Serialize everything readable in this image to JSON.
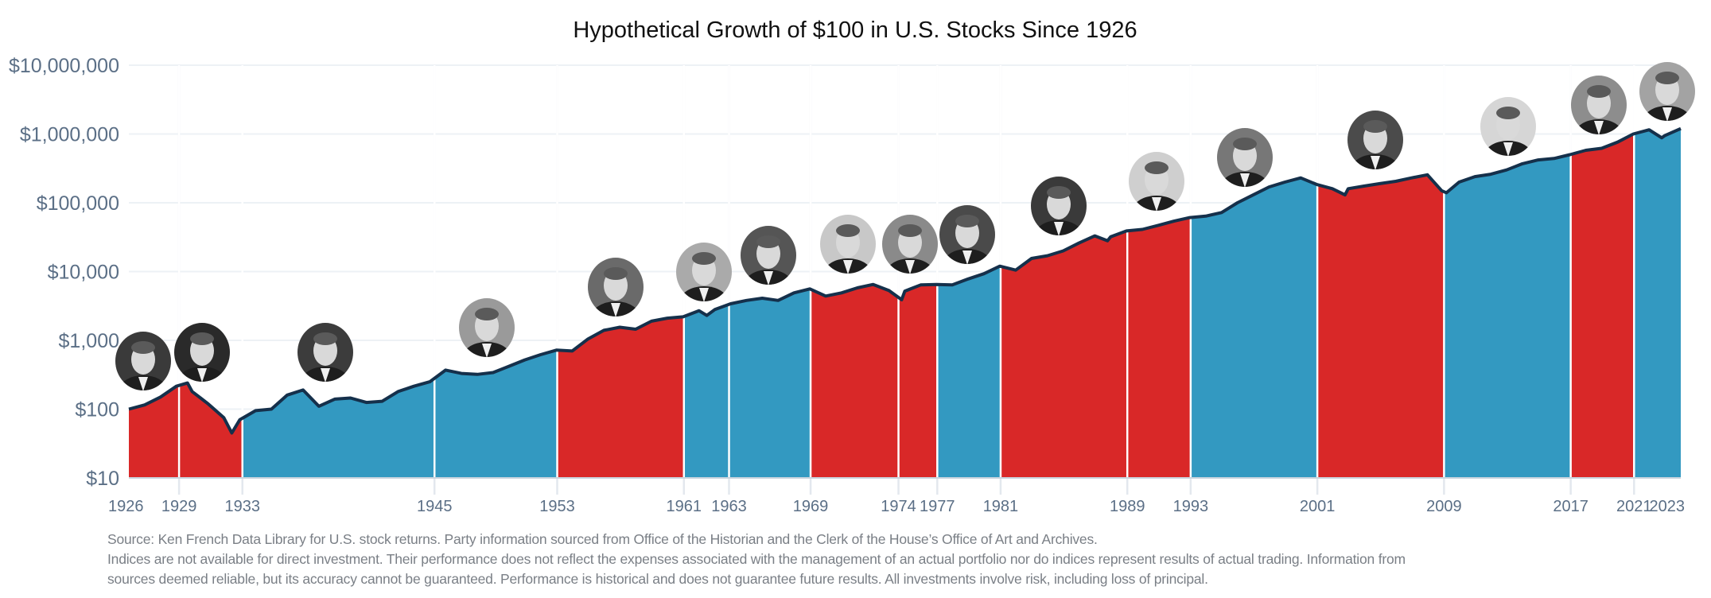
{
  "chart_data": {
    "type": "area",
    "title": "Hypothetical Growth of $100 in U.S. Stocks Since 1926",
    "xlabel": "",
    "ylabel": "",
    "yscale": "log",
    "ylim": [
      10,
      10000000
    ],
    "xlim": [
      1926,
      2024
    ],
    "grid": true,
    "y_ticks": [
      "$10",
      "$100",
      "$1,000",
      "$10,000",
      "$100,000",
      "$1,000,000",
      "$10,000,000"
    ],
    "y_tick_values": [
      10,
      100,
      1000,
      10000,
      100000,
      1000000,
      10000000
    ],
    "x_ticks": [
      "1926",
      "1929",
      "1933",
      "1945",
      "1953",
      "1961",
      "1963",
      "1969",
      "1974",
      "1977",
      "1981",
      "1989",
      "1993",
      "2001",
      "2009",
      "2017",
      "2021",
      "2023"
    ],
    "x_tick_values": [
      1926,
      1929.17,
      1933.17,
      1945.3,
      1953.05,
      1961.05,
      1963.9,
      1969.05,
      1974.6,
      1977.05,
      1981.05,
      1989.05,
      1993.05,
      2001.05,
      2009.05,
      2017.05,
      2021.05,
      2024
    ],
    "colors": {
      "republican": "#d92828",
      "democrat": "#3399c1",
      "line": "#15304b",
      "grid": "#edf1f5"
    },
    "terms": [
      {
        "start": 1926,
        "end": 1929.17,
        "party": "republican"
      },
      {
        "start": 1929.17,
        "end": 1933.17,
        "party": "republican"
      },
      {
        "start": 1933.17,
        "end": 1945.3,
        "party": "democrat"
      },
      {
        "start": 1945.3,
        "end": 1953.05,
        "party": "democrat"
      },
      {
        "start": 1953.05,
        "end": 1961.05,
        "party": "republican"
      },
      {
        "start": 1961.05,
        "end": 1963.9,
        "party": "democrat"
      },
      {
        "start": 1963.9,
        "end": 1969.05,
        "party": "democrat"
      },
      {
        "start": 1969.05,
        "end": 1974.6,
        "party": "republican"
      },
      {
        "start": 1974.6,
        "end": 1977.05,
        "party": "republican"
      },
      {
        "start": 1977.05,
        "end": 1981.05,
        "party": "democrat"
      },
      {
        "start": 1981.05,
        "end": 1989.05,
        "party": "republican"
      },
      {
        "start": 1989.05,
        "end": 1993.05,
        "party": "republican"
      },
      {
        "start": 1993.05,
        "end": 2001.05,
        "party": "democrat"
      },
      {
        "start": 2001.05,
        "end": 2009.05,
        "party": "republican"
      },
      {
        "start": 2009.05,
        "end": 2017.05,
        "party": "democrat"
      },
      {
        "start": 2017.05,
        "end": 2021.05,
        "party": "republican"
      },
      {
        "start": 2021.05,
        "end": 2024,
        "party": "democrat"
      }
    ],
    "portrait_icons": [
      "coolidge-portrait-icon",
      "hoover-portrait-icon",
      "roosevelt-portrait-icon",
      "truman-portrait-icon",
      "eisenhower-portrait-icon",
      "kennedy-portrait-icon",
      "johnson-portrait-icon",
      "nixon-portrait-icon",
      "ford-portrait-icon",
      "carter-portrait-icon",
      "reagan-portrait-icon",
      "bush-sr-portrait-icon",
      "clinton-portrait-icon",
      "bush-jr-portrait-icon",
      "obama-portrait-icon",
      "trump-portrait-icon",
      "biden-portrait-icon"
    ],
    "series": [
      {
        "x": [
          1926,
          1927,
          1928,
          1929,
          1929.7,
          1930,
          1931,
          1932,
          1932.5,
          1933,
          1934,
          1935,
          1936,
          1937,
          1938,
          1939,
          1940,
          1941,
          1942,
          1943,
          1944,
          1945,
          1946,
          1947,
          1948,
          1949,
          1950,
          1951,
          1952,
          1953,
          1954,
          1955,
          1956,
          1957,
          1958,
          1959,
          1960,
          1961,
          1962,
          1962.5,
          1963,
          1964,
          1965,
          1966,
          1967,
          1968,
          1969,
          1970,
          1971,
          1972,
          1973,
          1974,
          1974.8,
          1975,
          1976,
          1977,
          1978,
          1979,
          1980,
          1981,
          1982,
          1983,
          1984,
          1985,
          1986,
          1987,
          1987.8,
          1988,
          1989,
          1990,
          1991,
          1992,
          1993,
          1994,
          1995,
          1996,
          1997,
          1998,
          1999,
          2000,
          2001,
          2002,
          2002.8,
          2003,
          2004,
          2005,
          2006,
          2007,
          2008,
          2008.9,
          2009.2,
          2010,
          2011,
          2012,
          2013,
          2014,
          2015,
          2016,
          2017,
          2018,
          2019,
          2020,
          2021,
          2022,
          2022.8,
          2023,
          2024
        ],
        "y": [
          100,
          115,
          150,
          215,
          240,
          180,
          120,
          75,
          45,
          70,
          95,
          100,
          160,
          190,
          110,
          140,
          145,
          125,
          130,
          180,
          215,
          250,
          370,
          330,
          320,
          340,
          420,
          520,
          620,
          720,
          700,
          1050,
          1400,
          1550,
          1450,
          1900,
          2100,
          2200,
          2700,
          2300,
          2800,
          3400,
          3800,
          4100,
          3800,
          4900,
          5600,
          4400,
          4900,
          5800,
          6500,
          5300,
          3900,
          5200,
          6400,
          6500,
          6400,
          7800,
          9300,
          12000,
          10500,
          15500,
          17000,
          20000,
          26000,
          33000,
          28000,
          32000,
          39000,
          41000,
          47000,
          54000,
          61000,
          64000,
          72000,
          100000,
          130000,
          170000,
          200000,
          230000,
          185000,
          160000,
          130000,
          160000,
          175000,
          190000,
          205000,
          230000,
          255000,
          150000,
          140000,
          200000,
          240000,
          260000,
          300000,
          370000,
          420000,
          440000,
          500000,
          580000,
          620000,
          760000,
          1000000,
          1150000,
          880000,
          950000,
          1200000
        ]
      }
    ]
  },
  "footnote": {
    "line1": "Source: Ken French Data Library for U.S. stock returns. Party information sourced from Office of the Historian and the Clerk of the House’s Office of Art and Archives.",
    "line2": "Indices are not available for direct investment. Their performance does not reflect the expenses associated with the management of an actual portfolio nor do indices represent results of actual trading. Information from",
    "line3": "sources deemed reliable, but its accuracy cannot be guaranteed. Performance is historical and does not guarantee future results. All investments involve risk, including loss of principal."
  }
}
